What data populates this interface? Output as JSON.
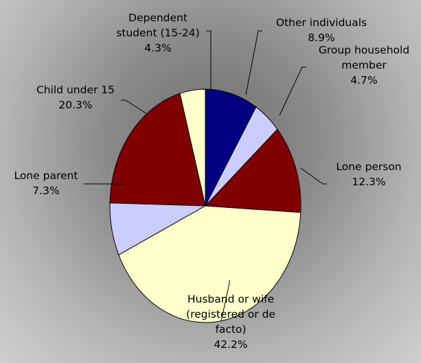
{
  "chart_data": {
    "type": "pie",
    "categories": [
      "Other individuals",
      "Group household member",
      "Lone person",
      "Husband or wife (registered or de facto)",
      "Lone parent",
      "Child under 15",
      "Dependent student (15-24)"
    ],
    "values": [
      8.9,
      4.7,
      12.3,
      42.2,
      7.3,
      20.3,
      4.3
    ],
    "value_labels": [
      "8.9%",
      "4.7%",
      "12.3%",
      "42.2%",
      "7.3%",
      "20.3%",
      "4.3%"
    ],
    "colors": [
      "#000080",
      "#ccccff",
      "#800000",
      "#ffffcc",
      "#ccccff",
      "#800000",
      "#ffffcc"
    ]
  }
}
